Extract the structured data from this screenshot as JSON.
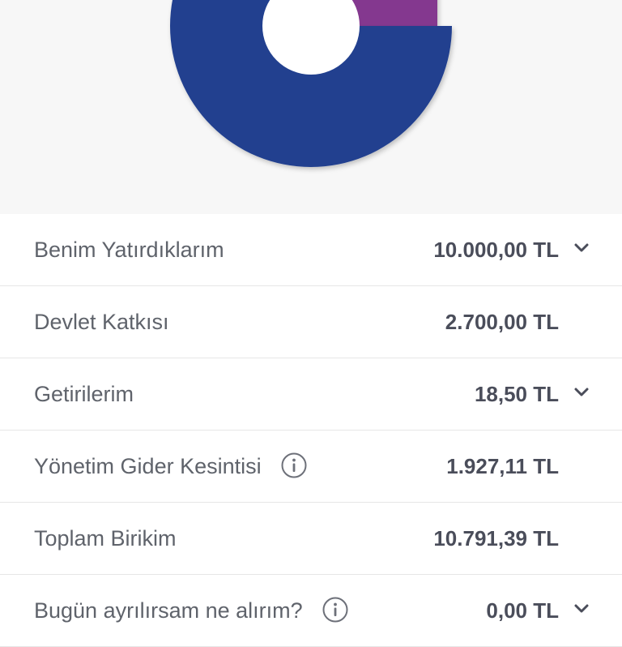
{
  "chart_data": {
    "type": "pie",
    "variant": "donut",
    "colors": {
      "devlet_katkisi": "#84398f",
      "benim_yatirdiklarim": "#21418f"
    }
  },
  "rows": [
    {
      "label": "Benim Yatırdıklarım",
      "value": "10.000,00 TL",
      "has_info": false,
      "has_chevron": true
    },
    {
      "label": "Devlet Katkısı",
      "value": "2.700,00 TL",
      "has_info": false,
      "has_chevron": false
    },
    {
      "label": "Getirilerim",
      "value": "18,50 TL",
      "has_info": false,
      "has_chevron": true
    },
    {
      "label": "Yönetim Gider Kesintisi",
      "value": "1.927,11 TL",
      "has_info": true,
      "has_chevron": false
    },
    {
      "label": "Toplam Birikim",
      "value": "10.791,39 TL",
      "has_info": false,
      "has_chevron": false
    },
    {
      "label": "Bugün ayrılırsam ne alırım?",
      "value": "0,00 TL",
      "has_info": true,
      "has_chevron": true
    }
  ],
  "icons": {
    "info": "info-circle-icon",
    "chevron": "chevron-down-icon"
  }
}
